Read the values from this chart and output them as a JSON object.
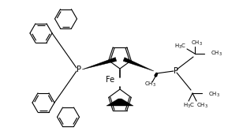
{
  "bg_color": "#ffffff",
  "line_color": "#000000",
  "lw": 0.8,
  "fig_width": 2.89,
  "fig_height": 1.76,
  "dpi": 100,
  "xlim": [
    0,
    289
  ],
  "ylim": [
    0,
    176
  ]
}
